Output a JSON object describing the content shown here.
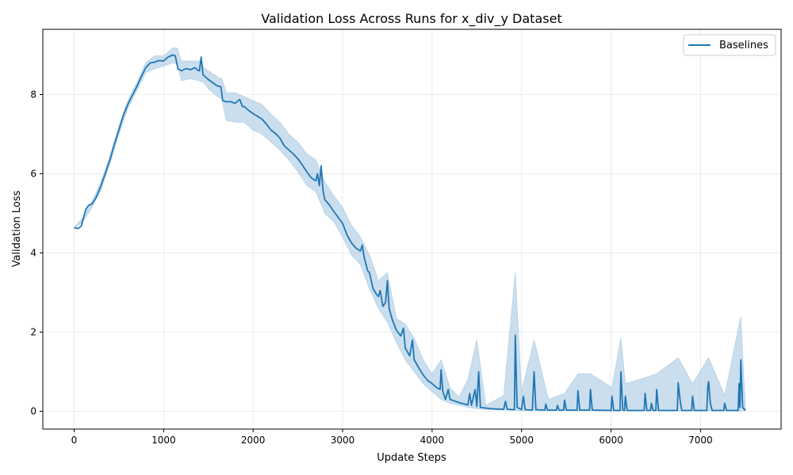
{
  "chart_data": {
    "type": "line",
    "title": "Validation Loss Across Runs for x_div_y Dataset",
    "xlabel": "Update Steps",
    "ylabel": "Validation Loss",
    "xlim": [
      -350,
      7900
    ],
    "ylim": [
      -0.45,
      9.65
    ],
    "xticks": [
      0,
      1000,
      2000,
      3000,
      4000,
      5000,
      6000,
      7000
    ],
    "yticks": [
      0,
      2,
      4,
      6,
      8
    ],
    "grid": true,
    "legend_position": "top-right",
    "colors": {
      "line": "#1f77b4",
      "band": "#a6c8e3"
    },
    "series": [
      {
        "name": "Baselines",
        "points": [
          [
            0,
            4.63
          ],
          [
            50,
            4.62
          ],
          [
            80,
            4.68
          ],
          [
            100,
            4.85
          ],
          [
            130,
            5.1
          ],
          [
            160,
            5.2
          ],
          [
            200,
            5.24
          ],
          [
            250,
            5.42
          ],
          [
            300,
            5.7
          ],
          [
            350,
            6.02
          ],
          [
            400,
            6.35
          ],
          [
            450,
            6.75
          ],
          [
            500,
            7.1
          ],
          [
            550,
            7.48
          ],
          [
            600,
            7.75
          ],
          [
            650,
            7.98
          ],
          [
            700,
            8.2
          ],
          [
            750,
            8.45
          ],
          [
            800,
            8.68
          ],
          [
            850,
            8.8
          ],
          [
            900,
            8.82
          ],
          [
            950,
            8.86
          ],
          [
            1000,
            8.85
          ],
          [
            1050,
            8.95
          ],
          [
            1100,
            9.0
          ],
          [
            1130,
            8.98
          ],
          [
            1160,
            8.65
          ],
          [
            1200,
            8.6
          ],
          [
            1250,
            8.66
          ],
          [
            1300,
            8.63
          ],
          [
            1350,
            8.68
          ],
          [
            1380,
            8.62
          ],
          [
            1400,
            8.6
          ],
          [
            1420,
            8.95
          ],
          [
            1440,
            8.5
          ],
          [
            1500,
            8.38
          ],
          [
            1550,
            8.3
          ],
          [
            1600,
            8.22
          ],
          [
            1640,
            8.2
          ],
          [
            1660,
            7.85
          ],
          [
            1700,
            7.82
          ],
          [
            1750,
            7.82
          ],
          [
            1800,
            7.78
          ],
          [
            1850,
            7.88
          ],
          [
            1880,
            7.7
          ],
          [
            1900,
            7.7
          ],
          [
            1950,
            7.6
          ],
          [
            2000,
            7.52
          ],
          [
            2050,
            7.45
          ],
          [
            2100,
            7.38
          ],
          [
            2150,
            7.25
          ],
          [
            2200,
            7.1
          ],
          [
            2250,
            7.02
          ],
          [
            2300,
            6.9
          ],
          [
            2350,
            6.7
          ],
          [
            2400,
            6.6
          ],
          [
            2450,
            6.5
          ],
          [
            2500,
            6.38
          ],
          [
            2550,
            6.22
          ],
          [
            2600,
            6.05
          ],
          [
            2650,
            5.9
          ],
          [
            2700,
            5.82
          ],
          [
            2720,
            6.0
          ],
          [
            2740,
            5.7
          ],
          [
            2760,
            6.2
          ],
          [
            2780,
            5.6
          ],
          [
            2800,
            5.35
          ],
          [
            2850,
            5.22
          ],
          [
            2900,
            5.05
          ],
          [
            2950,
            4.9
          ],
          [
            3000,
            4.75
          ],
          [
            3050,
            4.45
          ],
          [
            3100,
            4.25
          ],
          [
            3150,
            4.12
          ],
          [
            3200,
            4.05
          ],
          [
            3220,
            4.2
          ],
          [
            3240,
            3.9
          ],
          [
            3280,
            3.55
          ],
          [
            3300,
            3.5
          ],
          [
            3340,
            3.1
          ],
          [
            3380,
            2.95
          ],
          [
            3400,
            2.9
          ],
          [
            3420,
            3.05
          ],
          [
            3450,
            2.65
          ],
          [
            3480,
            2.75
          ],
          [
            3500,
            3.3
          ],
          [
            3520,
            2.6
          ],
          [
            3550,
            2.35
          ],
          [
            3600,
            2.05
          ],
          [
            3650,
            1.9
          ],
          [
            3680,
            2.1
          ],
          [
            3700,
            1.6
          ],
          [
            3750,
            1.4
          ],
          [
            3780,
            1.8
          ],
          [
            3800,
            1.3
          ],
          [
            3850,
            1.1
          ],
          [
            3900,
            0.92
          ],
          [
            3950,
            0.78
          ],
          [
            4000,
            0.7
          ],
          [
            4050,
            0.6
          ],
          [
            4090,
            0.55
          ],
          [
            4100,
            1.05
          ],
          [
            4120,
            0.5
          ],
          [
            4150,
            0.3
          ],
          [
            4180,
            0.55
          ],
          [
            4200,
            0.3
          ],
          [
            4300,
            0.22
          ],
          [
            4400,
            0.16
          ],
          [
            4420,
            0.45
          ],
          [
            4440,
            0.15
          ],
          [
            4480,
            0.55
          ],
          [
            4500,
            0.12
          ],
          [
            4520,
            1.0
          ],
          [
            4540,
            0.1
          ],
          [
            4600,
            0.08
          ],
          [
            4700,
            0.06
          ],
          [
            4800,
            0.05
          ],
          [
            4820,
            0.25
          ],
          [
            4840,
            0.05
          ],
          [
            4920,
            0.04
          ],
          [
            4930,
            1.92
          ],
          [
            4950,
            0.1
          ],
          [
            5000,
            0.04
          ],
          [
            5020,
            0.38
          ],
          [
            5040,
            0.04
          ],
          [
            5120,
            0.03
          ],
          [
            5140,
            1.0
          ],
          [
            5160,
            0.04
          ],
          [
            5260,
            0.03
          ],
          [
            5270,
            0.18
          ],
          [
            5290,
            0.03
          ],
          [
            5390,
            0.03
          ],
          [
            5400,
            0.15
          ],
          [
            5420,
            0.03
          ],
          [
            5470,
            0.03
          ],
          [
            5480,
            0.28
          ],
          [
            5500,
            0.03
          ],
          [
            5620,
            0.03
          ],
          [
            5630,
            0.52
          ],
          [
            5650,
            0.03
          ],
          [
            5760,
            0.03
          ],
          [
            5770,
            0.55
          ],
          [
            5790,
            0.03
          ],
          [
            6000,
            0.02
          ],
          [
            6010,
            0.38
          ],
          [
            6030,
            0.02
          ],
          [
            6100,
            0.02
          ],
          [
            6110,
            1.0
          ],
          [
            6130,
            0.03
          ],
          [
            6150,
            0.02
          ],
          [
            6160,
            0.38
          ],
          [
            6180,
            0.02
          ],
          [
            6370,
            0.02
          ],
          [
            6380,
            0.45
          ],
          [
            6400,
            0.02
          ],
          [
            6440,
            0.02
          ],
          [
            6450,
            0.2
          ],
          [
            6470,
            0.02
          ],
          [
            6500,
            0.02
          ],
          [
            6510,
            0.55
          ],
          [
            6530,
            0.02
          ],
          [
            6740,
            0.02
          ],
          [
            6750,
            0.72
          ],
          [
            6770,
            0.3
          ],
          [
            6790,
            0.02
          ],
          [
            6900,
            0.02
          ],
          [
            6910,
            0.38
          ],
          [
            6930,
            0.02
          ],
          [
            7070,
            0.02
          ],
          [
            7080,
            0.6
          ],
          [
            7090,
            0.75
          ],
          [
            7110,
            0.2
          ],
          [
            7130,
            0.02
          ],
          [
            7260,
            0.02
          ],
          [
            7270,
            0.2
          ],
          [
            7290,
            0.02
          ],
          [
            7420,
            0.02
          ],
          [
            7430,
            0.7
          ],
          [
            7440,
            0.1
          ],
          [
            7450,
            1.3
          ],
          [
            7470,
            0.1
          ],
          [
            7500,
            0.02
          ]
        ],
        "band": [
          [
            0,
            4.61,
            4.65
          ],
          [
            100,
            4.8,
            4.9
          ],
          [
            200,
            5.15,
            5.3
          ],
          [
            300,
            5.6,
            5.8
          ],
          [
            400,
            6.25,
            6.45
          ],
          [
            500,
            7.0,
            7.2
          ],
          [
            600,
            7.65,
            7.85
          ],
          [
            700,
            8.1,
            8.3
          ],
          [
            800,
            8.55,
            8.8
          ],
          [
            900,
            8.65,
            8.98
          ],
          [
            1000,
            8.72,
            8.98
          ],
          [
            1100,
            8.8,
            9.18
          ],
          [
            1150,
            8.78,
            9.18
          ],
          [
            1200,
            8.35,
            8.85
          ],
          [
            1300,
            8.4,
            8.85
          ],
          [
            1400,
            8.35,
            8.85
          ],
          [
            1450,
            8.3,
            8.68
          ],
          [
            1500,
            8.15,
            8.6
          ],
          [
            1600,
            7.95,
            8.45
          ],
          [
            1650,
            7.9,
            8.4
          ],
          [
            1700,
            7.35,
            8.05
          ],
          [
            1800,
            7.3,
            8.05
          ],
          [
            1900,
            7.3,
            7.95
          ],
          [
            2000,
            7.1,
            7.85
          ],
          [
            2100,
            7.0,
            7.75
          ],
          [
            2200,
            6.8,
            7.5
          ],
          [
            2300,
            6.6,
            7.3
          ],
          [
            2400,
            6.35,
            7.0
          ],
          [
            2500,
            6.05,
            6.8
          ],
          [
            2600,
            5.7,
            6.5
          ],
          [
            2700,
            5.55,
            6.35
          ],
          [
            2800,
            5.0,
            5.8
          ],
          [
            2900,
            4.8,
            5.45
          ],
          [
            3000,
            4.4,
            5.15
          ],
          [
            3100,
            3.95,
            4.7
          ],
          [
            3200,
            3.7,
            4.4
          ],
          [
            3300,
            3.1,
            3.95
          ],
          [
            3400,
            2.6,
            3.3
          ],
          [
            3500,
            2.25,
            3.5
          ],
          [
            3600,
            1.75,
            2.35
          ],
          [
            3700,
            1.3,
            2.2
          ],
          [
            3800,
            1.0,
            1.85
          ],
          [
            3900,
            0.7,
            1.3
          ],
          [
            4000,
            0.5,
            0.95
          ],
          [
            4100,
            0.3,
            1.3
          ],
          [
            4200,
            0.2,
            0.6
          ],
          [
            4300,
            0.15,
            0.35
          ],
          [
            4400,
            0.1,
            0.8
          ],
          [
            4500,
            0.06,
            1.8
          ],
          [
            4600,
            0.04,
            0.15
          ],
          [
            4800,
            0.03,
            0.4
          ],
          [
            4930,
            0.02,
            3.5
          ],
          [
            5000,
            0.02,
            0.5
          ],
          [
            5140,
            0.02,
            1.8
          ],
          [
            5300,
            0.01,
            0.3
          ],
          [
            5480,
            0.01,
            0.45
          ],
          [
            5630,
            0.01,
            0.95
          ],
          [
            5770,
            0.01,
            0.95
          ],
          [
            6010,
            0.01,
            0.6
          ],
          [
            6110,
            0.01,
            1.85
          ],
          [
            6160,
            0.01,
            0.7
          ],
          [
            6380,
            0.01,
            0.85
          ],
          [
            6510,
            0.01,
            0.95
          ],
          [
            6750,
            0.01,
            1.35
          ],
          [
            6910,
            0.01,
            0.7
          ],
          [
            7090,
            0.01,
            1.35
          ],
          [
            7270,
            0.01,
            0.4
          ],
          [
            7450,
            0.01,
            2.4
          ],
          [
            7500,
            0.01,
            0.1
          ]
        ]
      }
    ]
  }
}
